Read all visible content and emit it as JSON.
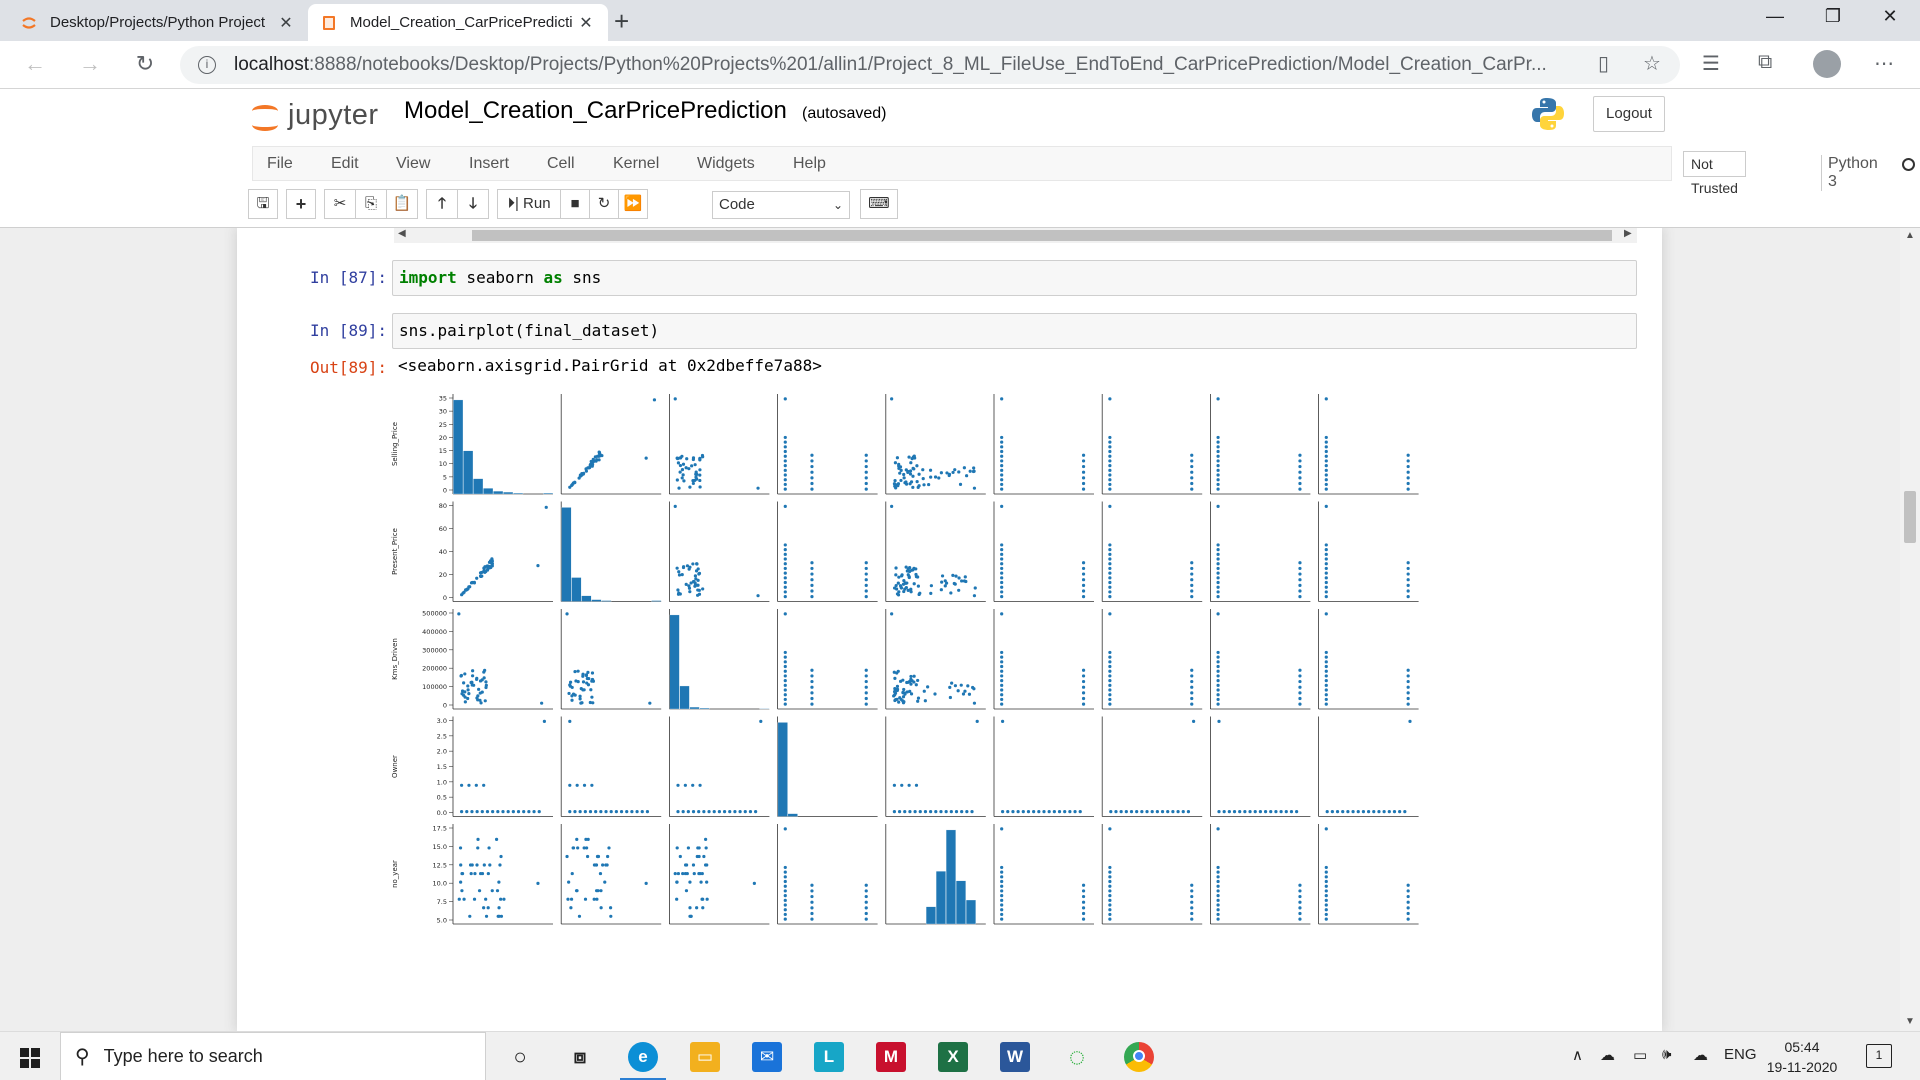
{
  "browser": {
    "tabs": [
      {
        "label": "Desktop/Projects/Python Project",
        "active": false
      },
      {
        "label": "Model_Creation_CarPricePredicti",
        "active": true
      }
    ],
    "url_host": "localhost",
    "url_rest": ":8888/notebooks/Desktop/Projects/Python%20Projects%201/allin1/Project_8_ML_FileUse_EndToEnd_CarPricePrediction/Model_Creation_CarPr...",
    "icons": [
      "back-icon",
      "forward-icon",
      "reload-icon",
      "info-icon",
      "reader-icon",
      "favorite-icon",
      "favorites-list-icon",
      "collections-icon",
      "more-icon"
    ]
  },
  "jupyter": {
    "logo_text": "jupyter",
    "notebook_title": "Model_Creation_CarPricePrediction",
    "autosave_status": "(autosaved)",
    "logout_label": "Logout",
    "menu": [
      "File",
      "Edit",
      "View",
      "Insert",
      "Cell",
      "Kernel",
      "Widgets",
      "Help"
    ],
    "trust_label": "Not Trusted",
    "kernel_name": "Python 3",
    "toolbar": {
      "run_label": "Run",
      "cell_type": "Code"
    }
  },
  "cells": [
    {
      "prompt": "In [87]:",
      "code_kw1": "import",
      "code_mid": " seaborn ",
      "code_kw2": "as",
      "code_end": " sns"
    },
    {
      "prompt": "In [89]:",
      "code": "sns.pairplot(final_dataset)"
    }
  ],
  "output": {
    "prompt": "Out[89]:",
    "text": "<seaborn.axisgrid.PairGrid at 0x2dbeffe7a88>"
  },
  "chart_data": {
    "type": "scatter",
    "subtype": "pairplot",
    "color": "#1f77b4",
    "variables": [
      "Selling_Price",
      "Present_Price",
      "Kms_Driven",
      "Owner",
      "no_year"
    ],
    "rows_visible": [
      "Selling_Price",
      "Present_Price",
      "Kms_Driven",
      "Owner",
      "no_year"
    ],
    "columns_visible": 9,
    "y_ticks": {
      "Selling_Price": [
        "0",
        "5",
        "10",
        "15",
        "20",
        "25",
        "30",
        "35"
      ],
      "Present_Price": [
        "0",
        "20",
        "40",
        "60",
        "80"
      ],
      "Kms_Driven": [
        "0",
        "100000",
        "200000",
        "300000",
        "400000",
        "500000"
      ],
      "Owner": [
        "0.0",
        "0.5",
        "1.0",
        "1.5",
        "2.0",
        "2.5",
        "3.0"
      ],
      "no_year": [
        "5.0",
        "7.5",
        "10.0",
        "12.5",
        "15.0",
        "17.5"
      ]
    },
    "histograms": {
      "Selling_Price": [
        0.98,
        0.45,
        0.16,
        0.06,
        0.03,
        0.02,
        0.01,
        0.0,
        0.0,
        0.01
      ],
      "Present_Price": [
        0.98,
        0.25,
        0.06,
        0.02,
        0.01,
        0.0,
        0.0,
        0.0,
        0.0,
        0.01
      ],
      "Kms_Driven": [
        0.98,
        0.24,
        0.02,
        0.01,
        0.0,
        0.0,
        0.0,
        0.0,
        0.0,
        0.005
      ],
      "Owner": [
        0.98,
        0.03,
        0.0,
        0.0,
        0.0,
        0.0,
        0.0,
        0.0,
        0.0,
        0.0
      ],
      "no_year": [
        0.0,
        0.0,
        0.0,
        0.0,
        0.18,
        0.55,
        0.98,
        0.45,
        0.25,
        0.0
      ]
    }
  },
  "taskbar": {
    "search_placeholder": "Type here to search",
    "language": "ENG",
    "time": "05:44",
    "date": "19-11-2020",
    "notification_count": "1"
  }
}
